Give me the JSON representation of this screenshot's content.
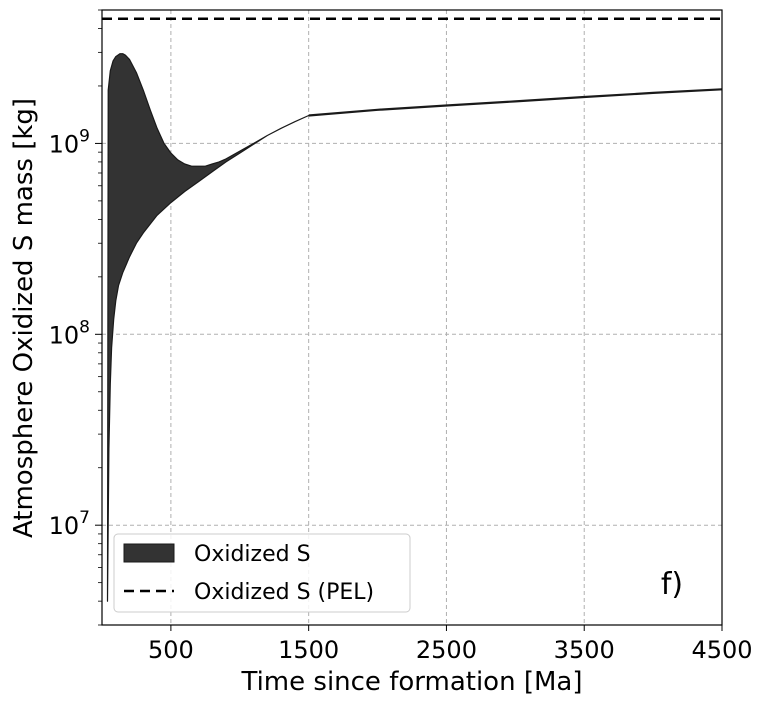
{
  "chart_data": {
    "type": "area",
    "xlabel": "Time since formation [Ma]",
    "ylabel": "Atmosphere Oxidized S mass [kg]",
    "xlim": [
      0,
      4500
    ],
    "ylim": [
      3000000.0,
      5000000000.0
    ],
    "yscale": "log",
    "xticks": [
      500,
      1500,
      2500,
      3500,
      4500
    ],
    "xtick_labels": [
      "500",
      "1500",
      "2500",
      "3500",
      "4500"
    ],
    "yticks": [
      10000000,
      100000000,
      1000000000
    ],
    "ytick_labels": [
      {
        "base": "10",
        "exp": "7"
      },
      {
        "base": "10",
        "exp": "8"
      },
      {
        "base": "10",
        "exp": "9"
      }
    ],
    "grid": true,
    "legend_position": "lower-left",
    "panel_label": "f)",
    "series": [
      {
        "name": "Oxidized S",
        "kind": "band",
        "color": "#333333",
        "x_upper": [
          40,
          45,
          60,
          80,
          100,
          130,
          150,
          170,
          200,
          250,
          300,
          350,
          400,
          450,
          500,
          550,
          600,
          650,
          700,
          750,
          800,
          850,
          900,
          1000,
          1100,
          1200,
          1300,
          1400,
          1500
        ],
        "upper": [
          4000000.0,
          1900000000.0,
          2400000000.0,
          2700000000.0,
          2850000000.0,
          2950000000.0,
          2950000000.0,
          2900000000.0,
          2750000000.0,
          2350000000.0,
          1900000000.0,
          1500000000.0,
          1200000000.0,
          1000000000.0,
          890000000.0,
          820000000.0,
          780000000.0,
          760000000.0,
          760000000.0,
          760000000.0,
          780000000.0,
          800000000.0,
          830000000.0,
          910000000.0,
          1000000000.0,
          1100000000.0,
          1200000000.0,
          1300000000.0,
          1400000000.0
        ],
        "x_lower": [
          40,
          45,
          50,
          60,
          70,
          85,
          100,
          120,
          150,
          200,
          250,
          300,
          400,
          500,
          600,
          700,
          800,
          900,
          1000,
          1100,
          1200,
          1300,
          1400,
          1500
        ],
        "lower": [
          4000000.0,
          10000000.0,
          25000000.0,
          55000000.0,
          85000000.0,
          120000000.0,
          150000000.0,
          180000000.0,
          210000000.0,
          255000000.0,
          300000000.0,
          340000000.0,
          420000000.0,
          490000000.0,
          560000000.0,
          630000000.0,
          710000000.0,
          800000000.0,
          890000000.0,
          990000000.0,
          1100000000.0,
          1200000000.0,
          1300000000.0,
          1400000000.0
        ]
      },
      {
        "name": "Oxidized S",
        "kind": "line",
        "color": "#1a1a1a",
        "x": [
          1500,
          2000,
          2500,
          3000,
          3500,
          4000,
          4500
        ],
        "y": [
          1400000000.0,
          1500000000.0,
          1580000000.0,
          1660000000.0,
          1750000000.0,
          1840000000.0,
          1920000000.0
        ]
      },
      {
        "name": "Oxidized S (PEL)",
        "kind": "hline",
        "color": "#000000",
        "y": 4500000000.0
      }
    ]
  }
}
